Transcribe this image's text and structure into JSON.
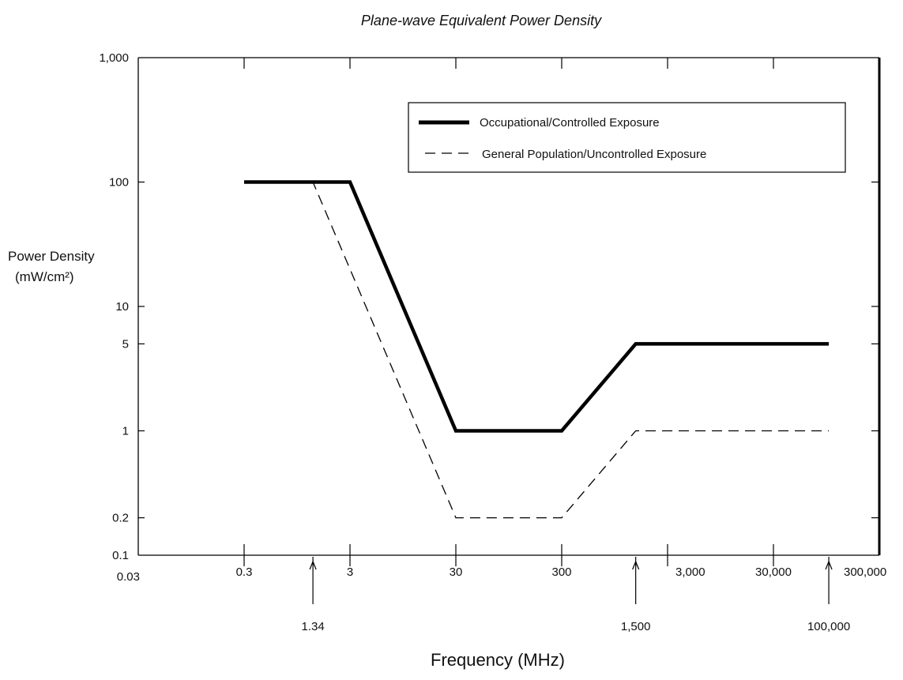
{
  "chart_data": {
    "type": "line",
    "title": "Plane-wave Equivalent Power Density",
    "xlabel": "Frequency (MHz)",
    "ylabel_line1": "Power Density",
    "ylabel_line2": "(mW/cm²)",
    "x_scale": "log",
    "y_scale": "log",
    "xlim": [
      0.03,
      300000
    ],
    "ylim": [
      0.1,
      1000
    ],
    "x_ticks": [
      {
        "value": 0.03,
        "label": "0.03"
      },
      {
        "value": 0.3,
        "label": "0.3"
      },
      {
        "value": 3,
        "label": "3"
      },
      {
        "value": 30,
        "label": "30"
      },
      {
        "value": 300,
        "label": "300"
      },
      {
        "value": 3000,
        "label": "3,000"
      },
      {
        "value": 30000,
        "label": "30,000"
      },
      {
        "value": 300000,
        "label": "300,000"
      }
    ],
    "x_annotations": [
      {
        "value": 1.34,
        "label": "1.34"
      },
      {
        "value": 1500,
        "label": "1,500"
      },
      {
        "value": 100000,
        "label": "100,000"
      }
    ],
    "y_ticks": [
      {
        "value": 1000,
        "label": "1,000"
      },
      {
        "value": 100,
        "label": "100"
      },
      {
        "value": 10,
        "label": "10"
      },
      {
        "value": 5,
        "label": "5"
      },
      {
        "value": 1,
        "label": "1"
      },
      {
        "value": 0.2,
        "label": "0.2"
      },
      {
        "value": 0.1,
        "label": "0.1"
      }
    ],
    "legend_position": "top-right",
    "series": [
      {
        "name": "Occupational/Controlled Exposure",
        "style": "solid",
        "color": "#000000",
        "x": [
          0.3,
          3,
          30,
          300,
          1500,
          100000
        ],
        "y": [
          100,
          100,
          1,
          1,
          5,
          5
        ]
      },
      {
        "name": "General Population/Uncontrolled Exposure",
        "style": "dashed",
        "color": "#000000",
        "x": [
          0.3,
          1.34,
          30,
          300,
          1500,
          100000
        ],
        "y": [
          100,
          100,
          0.2,
          0.2,
          1,
          1
        ]
      }
    ]
  }
}
